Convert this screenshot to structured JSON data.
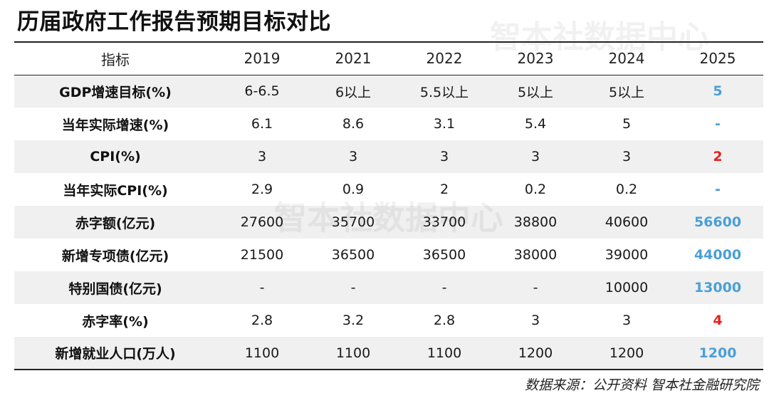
{
  "title": "历届政府工作报告预期目标对比",
  "watermark": "智本社数据中心",
  "table": {
    "headers": [
      "指标",
      "2019",
      "2021",
      "2022",
      "2023",
      "2024",
      "2025"
    ],
    "rows": [
      {
        "label": "GDP增速目标(%)",
        "values": [
          "6-6.5",
          "6以上",
          "5.5以上",
          "5以上",
          "5以上"
        ],
        "highlight": "5",
        "highlight_color": "#4a9fd8"
      },
      {
        "label": "当年实际增速(%)",
        "values": [
          "6.1",
          "8.6",
          "3.1",
          "5.4",
          "5"
        ],
        "highlight": "-",
        "highlight_color": "#4a9fd8"
      },
      {
        "label": "CPI(%)",
        "values": [
          "3",
          "3",
          "3",
          "3",
          "3"
        ],
        "highlight": "2",
        "highlight_color": "#e8211d"
      },
      {
        "label": "当年实际CPI(%)",
        "values": [
          "2.9",
          "0.9",
          "2",
          "0.2",
          "0.2"
        ],
        "highlight": "-",
        "highlight_color": "#4a9fd8"
      },
      {
        "label": "赤字额(亿元)",
        "values": [
          "27600",
          "35700",
          "33700",
          "38800",
          "40600"
        ],
        "highlight": "56600",
        "highlight_color": "#4a9fd8"
      },
      {
        "label": "新增专项债(亿元)",
        "values": [
          "21500",
          "36500",
          "36500",
          "38000",
          "39000"
        ],
        "highlight": "44000",
        "highlight_color": "#4a9fd8"
      },
      {
        "label": "特别国债(亿元)",
        "values": [
          "-",
          "-",
          "-",
          "-",
          "10000"
        ],
        "highlight": "13000",
        "highlight_color": "#4a9fd8"
      },
      {
        "label": "赤字率(%)",
        "values": [
          "2.8",
          "3.2",
          "2.8",
          "3",
          "3"
        ],
        "highlight": "4",
        "highlight_color": "#e8211d"
      },
      {
        "label": "新增就业人口(万人)",
        "values": [
          "1100",
          "1100",
          "1100",
          "1200",
          "1200"
        ],
        "highlight": "1200",
        "highlight_color": "#4a9fd8"
      }
    ]
  },
  "source": "数据来源：公开资料 智本社金融研究院"
}
